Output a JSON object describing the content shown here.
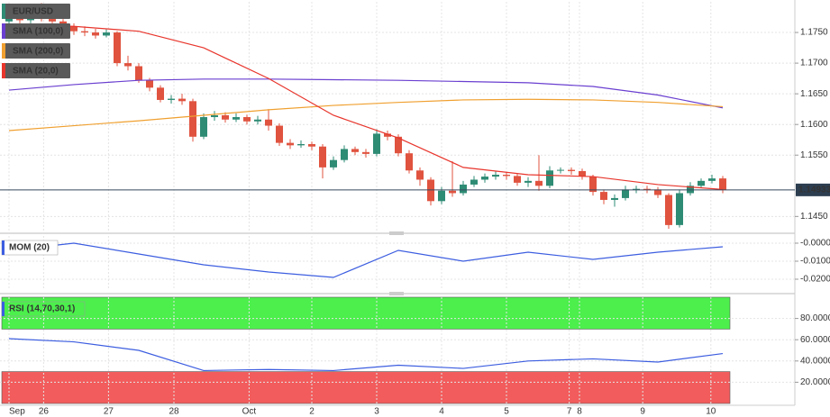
{
  "chart_data": [
    {
      "type": "candlestick",
      "symbol": "EUR/USD",
      "up_color": "#2e8b74",
      "down_color": "#e0533f",
      "open": [
        1.1768,
        1.1775,
        1.177,
        1.1778,
        1.1772,
        1.1768,
        1.176,
        1.1752,
        1.175,
        1.1745,
        1.175,
        1.17,
        1.1695,
        1.1672,
        1.166,
        1.164,
        1.1642,
        1.1638,
        1.158,
        1.1612,
        1.1615,
        1.1608,
        1.1612,
        1.1605,
        1.1608,
        1.1598,
        1.157,
        1.1566,
        1.1568,
        1.1564,
        1.153,
        1.1542,
        1.156,
        1.1555,
        1.1552,
        1.1585,
        1.158,
        1.1553,
        1.1525,
        1.151,
        1.1475,
        1.1492,
        1.1488,
        1.1502,
        1.151,
        1.1515,
        1.1518,
        1.1516,
        1.1505,
        1.1508,
        1.15,
        1.1525,
        1.1526,
        1.1524,
        1.1515,
        1.149,
        1.1477,
        1.148,
        1.1494,
        1.1495,
        1.1494,
        1.1485,
        1.1436,
        1.1488,
        1.15,
        1.1508,
        1.1512
      ],
      "high": [
        1.1782,
        1.178,
        1.1785,
        1.1798,
        1.1778,
        1.1772,
        1.1765,
        1.176,
        1.1756,
        1.1755,
        1.1752,
        1.1712,
        1.17,
        1.1676,
        1.1664,
        1.1648,
        1.165,
        1.1642,
        1.1618,
        1.1622,
        1.162,
        1.1618,
        1.1616,
        1.1614,
        1.1625,
        1.1602,
        1.1576,
        1.1574,
        1.1572,
        1.1568,
        1.1548,
        1.1566,
        1.1564,
        1.156,
        1.1592,
        1.159,
        1.1584,
        1.1558,
        1.153,
        1.1514,
        1.1498,
        1.154,
        1.1508,
        1.1516,
        1.152,
        1.1524,
        1.1522,
        1.152,
        1.1514,
        1.155,
        1.1532,
        1.153,
        1.153,
        1.1528,
        1.1518,
        1.1494,
        1.1486,
        1.15,
        1.15,
        1.15,
        1.1498,
        1.1488,
        1.1494,
        1.1506,
        1.1512,
        1.1518,
        1.1516
      ],
      "low": [
        1.1762,
        1.1765,
        1.1765,
        1.1768,
        1.1762,
        1.1755,
        1.1746,
        1.1744,
        1.174,
        1.1742,
        1.1695,
        1.1688,
        1.1668,
        1.1654,
        1.1636,
        1.1634,
        1.1632,
        1.1572,
        1.1576,
        1.1606,
        1.1603,
        1.1604,
        1.16,
        1.16,
        1.159,
        1.1565,
        1.156,
        1.1562,
        1.1558,
        1.1512,
        1.1526,
        1.1538,
        1.155,
        1.1546,
        1.1548,
        1.1574,
        1.1548,
        1.152,
        1.15,
        1.1468,
        1.147,
        1.1482,
        1.1484,
        1.1498,
        1.1505,
        1.151,
        1.151,
        1.15,
        1.1498,
        1.1492,
        1.1496,
        1.152,
        1.1518,
        1.151,
        1.1484,
        1.147,
        1.1466,
        1.1476,
        1.1488,
        1.1488,
        1.148,
        1.143,
        1.1432,
        1.1484,
        1.1496,
        1.1504,
        1.1488
      ],
      "close": [
        1.1775,
        1.177,
        1.1778,
        1.1772,
        1.1768,
        1.176,
        1.1752,
        1.175,
        1.1745,
        1.175,
        1.17,
        1.1695,
        1.1672,
        1.166,
        1.164,
        1.1642,
        1.1638,
        1.158,
        1.1612,
        1.1615,
        1.1608,
        1.1612,
        1.1605,
        1.1608,
        1.1598,
        1.157,
        1.1566,
        1.1568,
        1.1564,
        1.153,
        1.1542,
        1.156,
        1.1555,
        1.1552,
        1.1585,
        1.158,
        1.1553,
        1.1525,
        1.151,
        1.1475,
        1.1492,
        1.1488,
        1.1502,
        1.151,
        1.1515,
        1.1518,
        1.1516,
        1.1505,
        1.1508,
        1.15,
        1.1525,
        1.1526,
        1.1524,
        1.1515,
        1.149,
        1.1477,
        1.148,
        1.1494,
        1.1495,
        1.1494,
        1.1485,
        1.1436,
        1.1488,
        1.15,
        1.1508,
        1.1512,
        1.1493
      ],
      "series": [
        {
          "name": "SMA (100,0)",
          "color": "#6a3fd0",
          "x": [
            0,
            6,
            12,
            18,
            24,
            30,
            36,
            42,
            48,
            54,
            60,
            66
          ],
          "values": [
            1.1656,
            1.1665,
            1.1672,
            1.1674,
            1.1674,
            1.1673,
            1.1672,
            1.167,
            1.1668,
            1.1662,
            1.1648,
            1.1627
          ]
        },
        {
          "name": "SMA (200,0)",
          "color": "#f0a030",
          "x": [
            0,
            6,
            12,
            18,
            24,
            30,
            36,
            42,
            48,
            54,
            60,
            66
          ],
          "values": [
            1.159,
            1.1598,
            1.1606,
            1.1615,
            1.1624,
            1.1631,
            1.1636,
            1.164,
            1.1641,
            1.164,
            1.1636,
            1.1629
          ]
        },
        {
          "name": "SMA (20,0)",
          "color": "#e8352c",
          "x": [
            0,
            6,
            12,
            18,
            24,
            30,
            36,
            42,
            48,
            54,
            60,
            66
          ],
          "values": [
            1.1762,
            1.176,
            1.1752,
            1.1725,
            1.1675,
            1.1615,
            1.1578,
            1.153,
            1.1518,
            1.1515,
            1.1502,
            1.1494
          ]
        }
      ],
      "last_price": 1.14933,
      "ylim": [
        1.1427,
        1.18
      ],
      "yticks": [
        {
          "value": 1.175,
          "label": "1.1750"
        },
        {
          "value": 1.17,
          "label": "1.1700"
        },
        {
          "value": 1.165,
          "label": "1.1650"
        },
        {
          "value": 1.16,
          "label": "1.1600"
        },
        {
          "value": 1.155,
          "label": "1.1550"
        },
        {
          "value": 1.145,
          "label": "1.1450"
        }
      ]
    },
    {
      "type": "line",
      "title": "MOM (20)",
      "color": "#3d5ee0",
      "x": [
        0,
        6,
        12,
        18,
        24,
        30,
        36,
        42,
        48,
        54,
        60,
        66
      ],
      "values": [
        -0.004,
        0.0,
        -0.006,
        -0.012,
        -0.016,
        -0.019,
        -0.004,
        -0.01,
        -0.005,
        -0.009,
        -0.005,
        -0.002
      ],
      "ylim": [
        -0.026,
        0.004
      ],
      "yticks": [
        {
          "value": 0,
          "label": "-0.0000"
        },
        {
          "value": -0.01,
          "label": "-0.0100"
        },
        {
          "value": -0.02,
          "label": "-0.0200"
        }
      ]
    },
    {
      "type": "line",
      "title": "RSI (14,70,30,1)",
      "color": "#3d5ee0",
      "x": [
        0,
        6,
        12,
        18,
        24,
        30,
        36,
        42,
        48,
        54,
        60,
        66
      ],
      "values": [
        61,
        58,
        50,
        31,
        32,
        31,
        36,
        33,
        40,
        42,
        39,
        47
      ],
      "bands": [
        {
          "from": 70,
          "to": 100,
          "color": "#4cef4c"
        },
        {
          "from": 0,
          "to": 30,
          "color": "#f25c5c"
        }
      ],
      "ylim": [
        0,
        100
      ],
      "yticks": [
        {
          "value": 80,
          "label": "80.0000"
        },
        {
          "value": 60,
          "label": "60.0000"
        },
        {
          "value": 40,
          "label": "40.0000"
        },
        {
          "value": 20,
          "label": "20.0000"
        }
      ],
      "xticks": [
        {
          "value": 0,
          "label": "Sep"
        },
        {
          "value": 3.2,
          "label": "26"
        },
        {
          "value": 9.2,
          "label": "27"
        },
        {
          "value": 15.25,
          "label": "28"
        },
        {
          "value": 22.2,
          "label": "Oct"
        },
        {
          "value": 28,
          "label": "2"
        },
        {
          "value": 34,
          "label": "3"
        },
        {
          "value": 40,
          "label": "4"
        },
        {
          "value": 46,
          "label": "5"
        },
        {
          "value": 51.8,
          "label": "7"
        },
        {
          "value": 52.75,
          "label": "8"
        },
        {
          "value": 58.6,
          "label": "9"
        },
        {
          "value": 64.9,
          "label": "10"
        }
      ]
    }
  ]
}
